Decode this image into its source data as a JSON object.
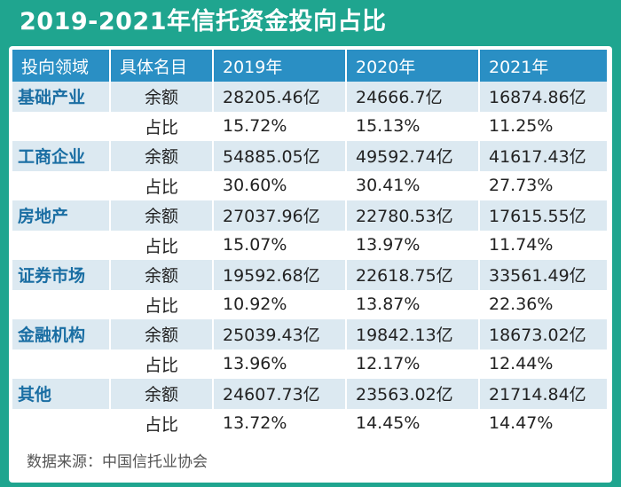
{
  "title": "2019-2021年信托资金投向占比",
  "headers": [
    "投向领域",
    "具体名目",
    "2019年",
    "2020年",
    "2021年"
  ],
  "rows": [
    {
      "domain": "基础产业",
      "metric": "余额",
      "v2019": "28205.46亿",
      "v2020": "24666.7亿",
      "v2021": "16874.86亿"
    },
    {
      "domain": "",
      "metric": "占比",
      "v2019": "15.72%",
      "v2020": "15.13%",
      "v2021": "11.25%"
    },
    {
      "domain": "工商企业",
      "metric": "余额",
      "v2019": "54885.05亿",
      "v2020": "49592.74亿",
      "v2021": "41617.43亿"
    },
    {
      "domain": "",
      "metric": "占比",
      "v2019": "30.60%",
      "v2020": "30.41%",
      "v2021": "27.73%"
    },
    {
      "domain": "房地产",
      "metric": "余额",
      "v2019": "27037.96亿",
      "v2020": "22780.53亿",
      "v2021": "17615.55亿"
    },
    {
      "domain": "",
      "metric": "占比",
      "v2019": "15.07%",
      "v2020": "13.97%",
      "v2021": "11.74%"
    },
    {
      "domain": "证券市场",
      "metric": "余额",
      "v2019": "19592.68亿",
      "v2020": "22618.75亿",
      "v2021": "33561.49亿"
    },
    {
      "domain": "",
      "metric": "占比",
      "v2019": "10.92%",
      "v2020": "13.87%",
      "v2021": "22.36%"
    },
    {
      "domain": "金融机构",
      "metric": "余额",
      "v2019": "25039.43亿",
      "v2020": "19842.13亿",
      "v2021": "18673.02亿"
    },
    {
      "domain": "",
      "metric": "占比",
      "v2019": "13.96%",
      "v2020": "12.17%",
      "v2021": "12.44%"
    },
    {
      "domain": "其他",
      "metric": "余额",
      "v2019": "24607.73亿",
      "v2020": "23563.02亿",
      "v2021": "21714.84亿"
    },
    {
      "domain": "",
      "metric": "占比",
      "v2019": "13.72%",
      "v2020": "14.45%",
      "v2021": "14.47%"
    }
  ],
  "source": "数据来源：中国信托业协会",
  "colors": {
    "background": "#1fa58f",
    "header": "#2a8fc4",
    "domain_text": "#1a6ea3",
    "row_shade": "#dce9f1"
  }
}
